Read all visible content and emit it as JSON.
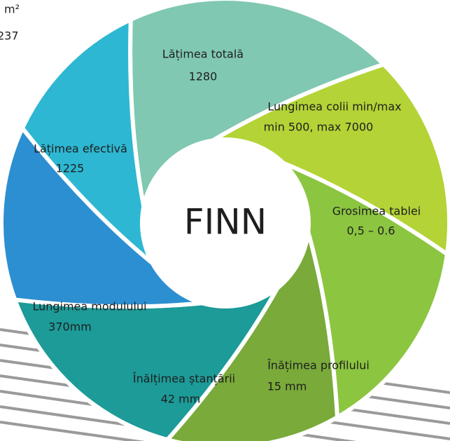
{
  "corner_text": {
    "unit": "m²",
    "value": "237"
  },
  "center": {
    "label": "FINN"
  },
  "segments": [
    {
      "label": "Lățimea totală",
      "value": "1280",
      "color": "#80c8b2"
    },
    {
      "label": "Lungimea colii min/max",
      "value": "min 500, max 7000",
      "color": "#b4d336"
    },
    {
      "label": "Grosimea tablei",
      "value": "0,5 – 0.6",
      "color": "#8cc540"
    },
    {
      "label": "Înățimea profilului",
      "value": "15 mm",
      "color": "#79aa3a"
    },
    {
      "label": "Înălțimea ștanțării",
      "value": "42 mm",
      "color": "#1c9b98"
    },
    {
      "label": "Lungimea modulului",
      "value": "370mm",
      "color": "#2c8fd1"
    },
    {
      "label": "Lățimea efectivă",
      "value": "1225",
      "color": "#2db7d2"
    }
  ]
}
